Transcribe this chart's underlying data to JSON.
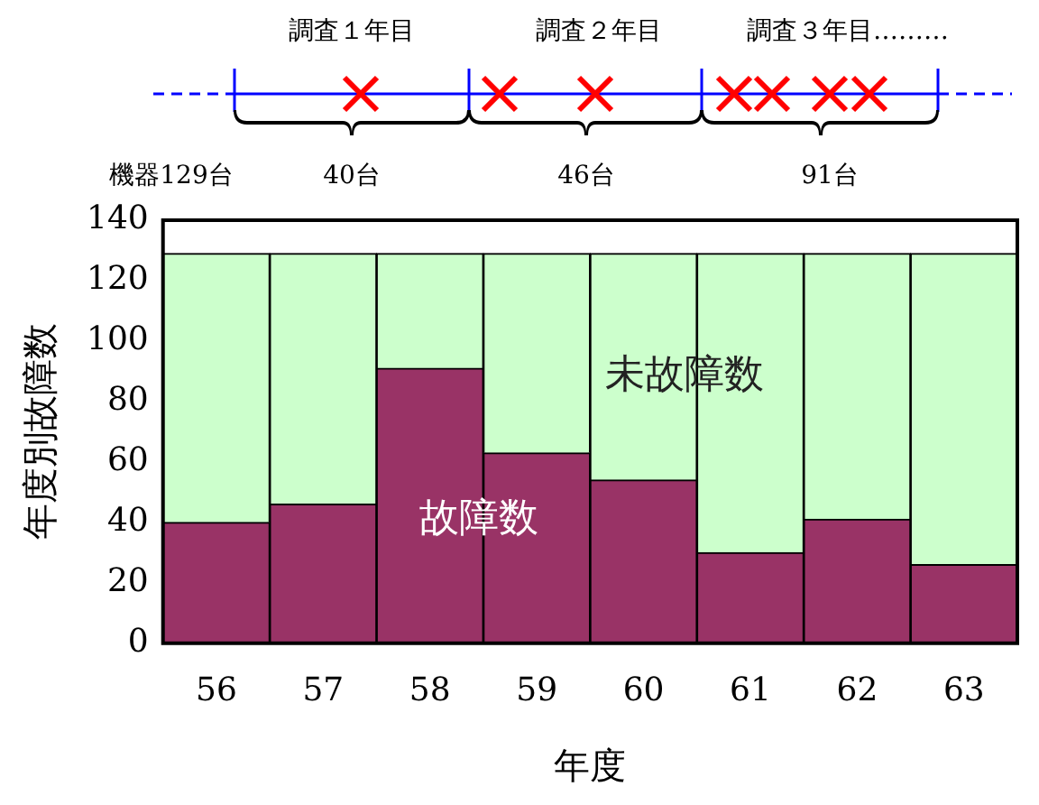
{
  "chart_data": {
    "type": "bar",
    "stacked": true,
    "xlabel": "年度",
    "ylabel": "年度別故障数",
    "categories": [
      "56",
      "57",
      "58",
      "59",
      "60",
      "61",
      "62",
      "63"
    ],
    "series": [
      {
        "name": "故障数",
        "color": "#993366",
        "values": [
          40,
          46,
          91,
          63,
          54,
          30,
          41,
          26
        ]
      },
      {
        "name": "未故障数",
        "color": "#ccffcc",
        "values": [
          89,
          83,
          38,
          66,
          75,
          99,
          88,
          103
        ]
      }
    ],
    "ylim": [
      0,
      140
    ],
    "yticks": [
      0,
      20,
      40,
      60,
      80,
      100,
      120,
      140
    ],
    "grid": false,
    "legend": false,
    "annotations": [
      "調査１年目",
      "調査２年目",
      "調査３年目………",
      "機器129台",
      "40台",
      "46台",
      "91台"
    ]
  }
}
